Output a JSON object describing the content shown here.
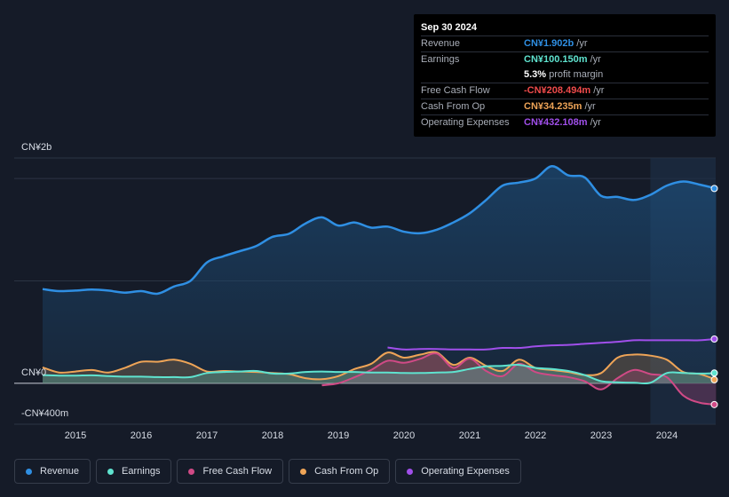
{
  "tooltip": {
    "date": "Sep 30 2024",
    "rows": [
      {
        "label": "Revenue",
        "value": "CN¥1.902b",
        "unit": "/yr",
        "color": "#2f8fe3"
      },
      {
        "label": "Earnings",
        "value": "CN¥100.150m",
        "unit": "/yr",
        "color": "#5fe3cf"
      },
      {
        "label": "",
        "value": "5.3%",
        "unit": "profit margin",
        "color": "#ffffff"
      },
      {
        "label": "Free Cash Flow",
        "value": "-CN¥208.494m",
        "unit": "/yr",
        "color": "#ef4b4b"
      },
      {
        "label": "Cash From Op",
        "value": "CN¥34.235m",
        "unit": "/yr",
        "color": "#eea457"
      },
      {
        "label": "Operating Expenses",
        "value": "CN¥432.108m",
        "unit": "/yr",
        "color": "#a04fea"
      }
    ]
  },
  "chart_data": {
    "type": "area",
    "ylim": [
      -400,
      2200
    ],
    "y_tick_labels": {
      "top": "CN¥2b",
      "zero": "CN¥0",
      "bottom": "-CN¥400m"
    },
    "x_tick_labels": [
      "2015",
      "2016",
      "2017",
      "2018",
      "2019",
      "2020",
      "2021",
      "2022",
      "2023",
      "2024"
    ],
    "forecast_shaded_from": 2023.75,
    "series": [
      {
        "name": "Revenue",
        "color": "#2f8fe3",
        "points": [
          [
            2014.5,
            920
          ],
          [
            2014.75,
            900
          ],
          [
            2015.0,
            905
          ],
          [
            2015.25,
            915
          ],
          [
            2015.5,
            905
          ],
          [
            2015.75,
            885
          ],
          [
            2016.0,
            900
          ],
          [
            2016.25,
            875
          ],
          [
            2016.5,
            945
          ],
          [
            2016.75,
            1000
          ],
          [
            2017.0,
            1180
          ],
          [
            2017.25,
            1240
          ],
          [
            2017.5,
            1290
          ],
          [
            2017.75,
            1340
          ],
          [
            2018.0,
            1430
          ],
          [
            2018.25,
            1460
          ],
          [
            2018.5,
            1560
          ],
          [
            2018.75,
            1620
          ],
          [
            2019.0,
            1540
          ],
          [
            2019.25,
            1570
          ],
          [
            2019.5,
            1520
          ],
          [
            2019.75,
            1530
          ],
          [
            2020.0,
            1480
          ],
          [
            2020.25,
            1465
          ],
          [
            2020.5,
            1500
          ],
          [
            2020.75,
            1570
          ],
          [
            2021.0,
            1660
          ],
          [
            2021.25,
            1790
          ],
          [
            2021.5,
            1930
          ],
          [
            2021.75,
            1960
          ],
          [
            2022.0,
            2000
          ],
          [
            2022.25,
            2120
          ],
          [
            2022.5,
            2030
          ],
          [
            2022.75,
            2010
          ],
          [
            2023.0,
            1830
          ],
          [
            2023.25,
            1820
          ],
          [
            2023.5,
            1790
          ],
          [
            2023.75,
            1840
          ],
          [
            2024.0,
            1930
          ],
          [
            2024.25,
            1970
          ],
          [
            2024.5,
            1940
          ],
          [
            2024.75,
            1902
          ]
        ]
      },
      {
        "name": "Earnings",
        "color": "#5fe3cf",
        "points": [
          [
            2014.5,
            80
          ],
          [
            2014.75,
            75
          ],
          [
            2015.0,
            75
          ],
          [
            2015.25,
            78
          ],
          [
            2015.5,
            70
          ],
          [
            2015.75,
            65
          ],
          [
            2016.0,
            65
          ],
          [
            2016.25,
            60
          ],
          [
            2016.5,
            60
          ],
          [
            2016.75,
            60
          ],
          [
            2017.0,
            100
          ],
          [
            2017.25,
            110
          ],
          [
            2017.5,
            115
          ],
          [
            2017.75,
            120
          ],
          [
            2018.0,
            95
          ],
          [
            2018.25,
            95
          ],
          [
            2018.5,
            110
          ],
          [
            2018.75,
            115
          ],
          [
            2019.0,
            110
          ],
          [
            2019.25,
            110
          ],
          [
            2019.5,
            105
          ],
          [
            2019.75,
            105
          ],
          [
            2020.0,
            100
          ],
          [
            2020.25,
            100
          ],
          [
            2020.5,
            105
          ],
          [
            2020.75,
            110
          ],
          [
            2021.0,
            140
          ],
          [
            2021.25,
            165
          ],
          [
            2021.5,
            170
          ],
          [
            2021.75,
            180
          ],
          [
            2022.0,
            150
          ],
          [
            2022.25,
            140
          ],
          [
            2022.5,
            120
          ],
          [
            2022.75,
            80
          ],
          [
            2023.0,
            20
          ],
          [
            2023.25,
            10
          ],
          [
            2023.5,
            5
          ],
          [
            2023.75,
            5
          ],
          [
            2024.0,
            100
          ],
          [
            2024.25,
            100
          ],
          [
            2024.5,
            95
          ],
          [
            2024.75,
            100
          ]
        ]
      },
      {
        "name": "Free Cash Flow",
        "color": "#d04a86",
        "points": [
          [
            2018.75,
            -20
          ],
          [
            2019.0,
            0
          ],
          [
            2019.25,
            60
          ],
          [
            2019.5,
            130
          ],
          [
            2019.75,
            220
          ],
          [
            2020.0,
            200
          ],
          [
            2020.25,
            240
          ],
          [
            2020.5,
            290
          ],
          [
            2020.75,
            150
          ],
          [
            2021.0,
            240
          ],
          [
            2021.25,
            120
          ],
          [
            2021.5,
            70
          ],
          [
            2021.75,
            190
          ],
          [
            2022.0,
            110
          ],
          [
            2022.25,
            80
          ],
          [
            2022.5,
            60
          ],
          [
            2022.75,
            20
          ],
          [
            2023.0,
            -60
          ],
          [
            2023.25,
            50
          ],
          [
            2023.5,
            130
          ],
          [
            2023.75,
            90
          ],
          [
            2024.0,
            60
          ],
          [
            2024.25,
            -120
          ],
          [
            2024.5,
            -190
          ],
          [
            2024.75,
            -208
          ]
        ]
      },
      {
        "name": "Cash From Op",
        "color": "#eea457",
        "points": [
          [
            2014.5,
            155
          ],
          [
            2014.75,
            105
          ],
          [
            2015.0,
            115
          ],
          [
            2015.25,
            130
          ],
          [
            2015.5,
            105
          ],
          [
            2015.75,
            150
          ],
          [
            2016.0,
            210
          ],
          [
            2016.25,
            210
          ],
          [
            2016.5,
            230
          ],
          [
            2016.75,
            190
          ],
          [
            2017.0,
            115
          ],
          [
            2017.25,
            120
          ],
          [
            2017.5,
            115
          ],
          [
            2017.75,
            110
          ],
          [
            2018.0,
            100
          ],
          [
            2018.25,
            90
          ],
          [
            2018.5,
            50
          ],
          [
            2018.75,
            40
          ],
          [
            2019.0,
            70
          ],
          [
            2019.25,
            140
          ],
          [
            2019.5,
            190
          ],
          [
            2019.75,
            300
          ],
          [
            2020.0,
            250
          ],
          [
            2020.25,
            280
          ],
          [
            2020.5,
            300
          ],
          [
            2020.75,
            180
          ],
          [
            2021.0,
            250
          ],
          [
            2021.25,
            170
          ],
          [
            2021.5,
            120
          ],
          [
            2021.75,
            230
          ],
          [
            2022.0,
            150
          ],
          [
            2022.25,
            130
          ],
          [
            2022.5,
            110
          ],
          [
            2022.75,
            80
          ],
          [
            2023.0,
            100
          ],
          [
            2023.25,
            250
          ],
          [
            2023.5,
            280
          ],
          [
            2023.75,
            270
          ],
          [
            2024.0,
            230
          ],
          [
            2024.25,
            110
          ],
          [
            2024.5,
            90
          ],
          [
            2024.75,
            34
          ]
        ]
      },
      {
        "name": "Operating Expenses",
        "color": "#a04fea",
        "points": [
          [
            2019.75,
            350
          ],
          [
            2020.0,
            330
          ],
          [
            2020.25,
            335
          ],
          [
            2020.5,
            335
          ],
          [
            2020.75,
            330
          ],
          [
            2021.0,
            330
          ],
          [
            2021.25,
            330
          ],
          [
            2021.5,
            345
          ],
          [
            2021.75,
            345
          ],
          [
            2022.0,
            360
          ],
          [
            2022.25,
            370
          ],
          [
            2022.5,
            375
          ],
          [
            2022.75,
            385
          ],
          [
            2023.0,
            395
          ],
          [
            2023.25,
            405
          ],
          [
            2023.5,
            420
          ],
          [
            2023.75,
            420
          ],
          [
            2024.0,
            420
          ],
          [
            2024.25,
            420
          ],
          [
            2024.5,
            420
          ],
          [
            2024.75,
            432
          ]
        ]
      }
    ]
  },
  "legend": [
    {
      "label": "Revenue",
      "color": "#2f8fe3"
    },
    {
      "label": "Earnings",
      "color": "#5fe3cf"
    },
    {
      "label": "Free Cash Flow",
      "color": "#d04a86"
    },
    {
      "label": "Cash From Op",
      "color": "#eea457"
    },
    {
      "label": "Operating Expenses",
      "color": "#a04fea"
    }
  ]
}
